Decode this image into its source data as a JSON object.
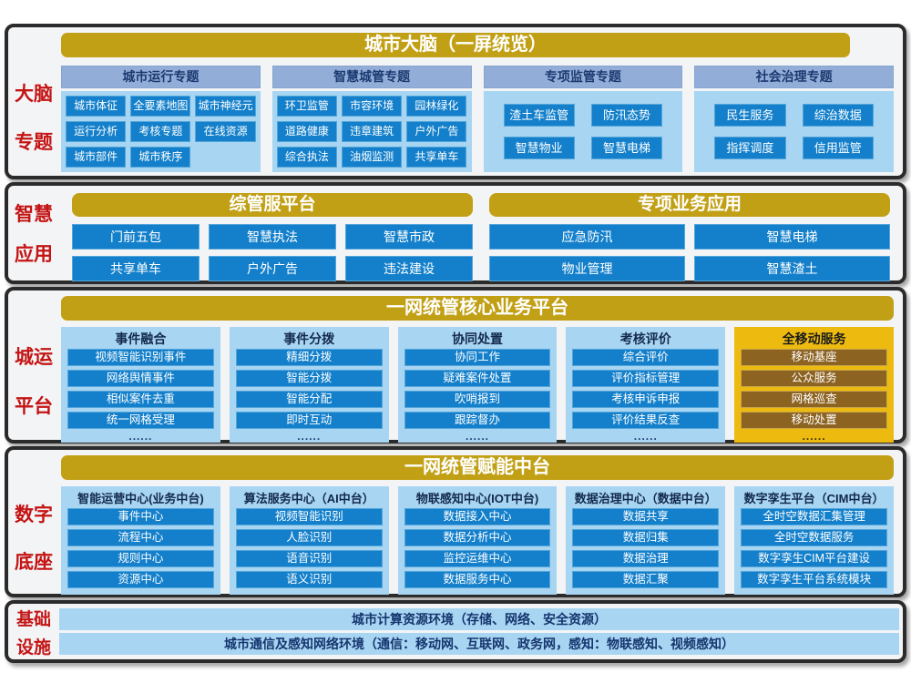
{
  "colors": {
    "gold_header": "#c2a016",
    "gold_panel": "#edbb10",
    "brown_box": "#8d6322",
    "blue_box": "#1480cb",
    "light_blue_panel": "#a8d5f2",
    "steel_header": "#92aed8",
    "red_label": "#c41414",
    "navy_text": "#15356e",
    "band_border": "#2b2b2b"
  },
  "band1": {
    "label1": "大脑",
    "label2": "专题",
    "title": "城市大脑（一屏统览）",
    "groups": [
      {
        "header": "城市运行专题",
        "cols": 3,
        "items": [
          "城市体征",
          "全要素地图",
          "城市神经元",
          "运行分析",
          "考核专题",
          "在线资源",
          "城市部件",
          "城市秩序"
        ]
      },
      {
        "header": "智慧城管专题",
        "cols": 3,
        "items": [
          "环卫监管",
          "市容环境",
          "园林绿化",
          "道路健康",
          "违章建筑",
          "户外广告",
          "综合执法",
          "油烟监测",
          "共享单车"
        ]
      },
      {
        "header": "专项监管专题",
        "cols": 2,
        "items": [
          "渣土车监管",
          "防汛态势",
          "智慧物业",
          "智慧电梯"
        ]
      },
      {
        "header": "社会治理专题",
        "cols": 2,
        "items": [
          "民生服务",
          "综治数据",
          "指挥调度",
          "信用监管"
        ]
      }
    ]
  },
  "band2": {
    "label1": "智慧",
    "label2": "应用",
    "groups": [
      {
        "title": "综管服平台",
        "cols": 3,
        "items": [
          "门前五包",
          "智慧执法",
          "智慧市政",
          "共享单车",
          "户外广告",
          "违法建设"
        ]
      },
      {
        "title": "专项业务应用",
        "cols": 2,
        "items": [
          "应急防汛",
          "智慧电梯",
          "物业管理",
          "智慧渣土"
        ]
      }
    ]
  },
  "band3": {
    "label1": "城运",
    "label2": "平台",
    "title": "一网统管核心业务平台",
    "columns": [
      {
        "title": "事件融合",
        "theme": "blue",
        "more": "......",
        "items": [
          "视频智能识别事件",
          "网络舆情事件",
          "相似案件去重",
          "统一网格受理"
        ]
      },
      {
        "title": "事件分拨",
        "theme": "blue",
        "more": "......",
        "items": [
          "精细分拨",
          "智能分拨",
          "智能分配",
          "即时互动"
        ]
      },
      {
        "title": "协同处置",
        "theme": "blue",
        "more": "......",
        "items": [
          "协同工作",
          "疑难案件处置",
          "吹哨报到",
          "跟踪督办"
        ]
      },
      {
        "title": "考核评价",
        "theme": "blue",
        "more": "......",
        "items": [
          "综合评价",
          "评价指标管理",
          "考核申诉申报",
          "评价结果反查"
        ]
      },
      {
        "title": "全移动服务",
        "theme": "gold",
        "more": "......",
        "items": [
          "移动基座",
          "公众服务",
          "网格巡查",
          "移动处置"
        ]
      }
    ]
  },
  "band4": {
    "label1": "数字",
    "label2": "底座",
    "title": "一网统管赋能中台",
    "columns": [
      {
        "title": "智能运营中心(业务中台)",
        "items": [
          "事件中心",
          "流程中心",
          "规则中心",
          "资源中心"
        ]
      },
      {
        "title": "算法服务中心（AI中台）",
        "items": [
          "视频智能识别",
          "人脸识别",
          "语音识别",
          "语义识别"
        ]
      },
      {
        "title": "物联感知中心(IOT中台)",
        "items": [
          "数据接入中心",
          "数据分析中心",
          "监控运维中心",
          "数据服务中心"
        ]
      },
      {
        "title": "数据治理中心（数据中台）",
        "items": [
          "数据共享",
          "数据归集",
          "数据治理",
          "数据汇聚"
        ]
      },
      {
        "title": "数字孪生平台（CIM中台）",
        "items": [
          "全时空数据汇集管理",
          "全时空数据服务",
          "数字孪生CIM平台建设",
          "数字孪生平台系统模块"
        ]
      }
    ]
  },
  "band5": {
    "label1": "基础",
    "label2": "设施",
    "rows": [
      "城市计算资源环境（存储、网络、安全资源）",
      "城市通信及感知网络环境（通信：移动网、互联网、政务网，感知：物联感知、视频感知）"
    ]
  }
}
